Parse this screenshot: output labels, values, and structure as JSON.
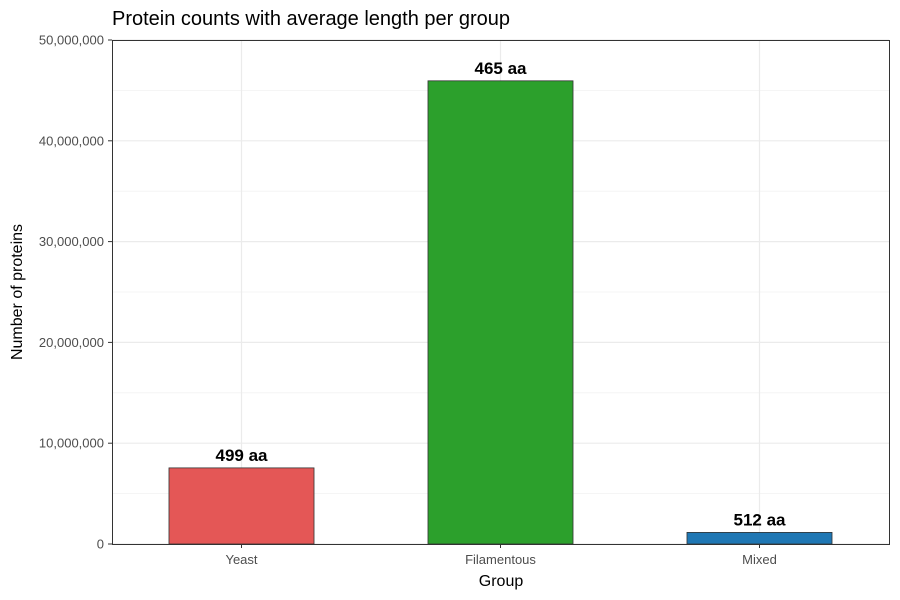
{
  "chart_data": {
    "type": "bar",
    "title": "Protein counts with average length per group",
    "xlabel": "Group",
    "ylabel": "Number of proteins",
    "categories": [
      "Yeast",
      "Filamentous",
      "Mixed"
    ],
    "values": [
      7550000,
      45950000,
      1150000
    ],
    "data_labels": [
      "499 aa",
      "465 aa",
      "512 aa"
    ],
    "colors": [
      "#E45756",
      "#2CA02C",
      "#1F77B4"
    ],
    "ylim": [
      0,
      50000000
    ],
    "yticks": [
      0,
      10000000,
      20000000,
      30000000,
      40000000,
      50000000
    ],
    "ytick_labels": [
      "0",
      "10,000,000",
      "20,000,000",
      "30,000,000",
      "40,000,000",
      "50,000,000"
    ],
    "grid": true,
    "legend": "none"
  }
}
